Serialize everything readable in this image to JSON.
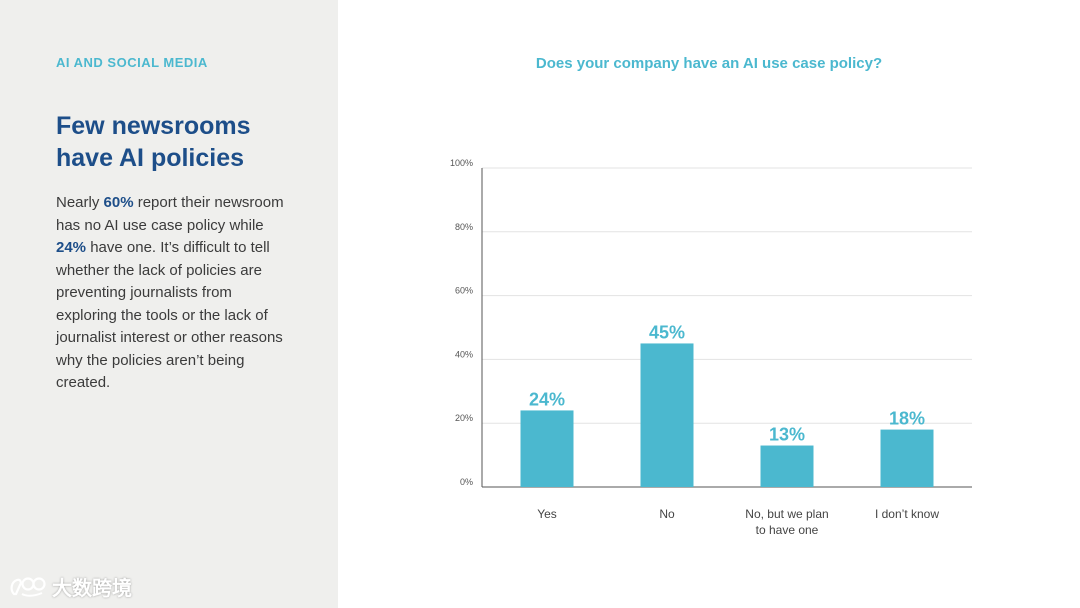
{
  "section_label": "AI AND SOCIAL MEDIA",
  "headline": {
    "line1": "Few newsrooms",
    "line2": "have AI policies"
  },
  "body": {
    "p1": "Nearly ",
    "h1": "60%",
    "p2": " report their newsroom has no AI use case policy while ",
    "h2": "24%",
    "p3": " have one. It’s difficult to tell whether the lack of policies are preventing journalists from exploring the tools or the lack of journalist interest or other reasons why the policies aren’t being created."
  },
  "watermark": {
    "text": "大数跨境",
    "icon": "logo-icon"
  },
  "colors": {
    "accent": "#4bb8cf",
    "headline": "#1d4e89",
    "panel": "#efefed"
  },
  "chart_data": {
    "type": "bar",
    "title": "Does your company have an AI use case policy?",
    "categories": [
      "Yes",
      "No",
      "No, but we plan to have one",
      "I don’t know"
    ],
    "category_lines": [
      [
        "Yes"
      ],
      [
        "No"
      ],
      [
        "No, but we plan",
        "to have one"
      ],
      [
        "I don’t know"
      ]
    ],
    "values": [
      24,
      45,
      13,
      18
    ],
    "value_labels": [
      "24%",
      "45%",
      "13%",
      "18%"
    ],
    "ylim": [
      0,
      100
    ],
    "yticks": [
      0,
      20,
      40,
      60,
      80,
      100
    ],
    "ytick_labels": [
      "0%",
      "20%",
      "40%",
      "60%",
      "80%",
      "100%"
    ],
    "grid": true,
    "xlabel": "",
    "ylabel": ""
  }
}
